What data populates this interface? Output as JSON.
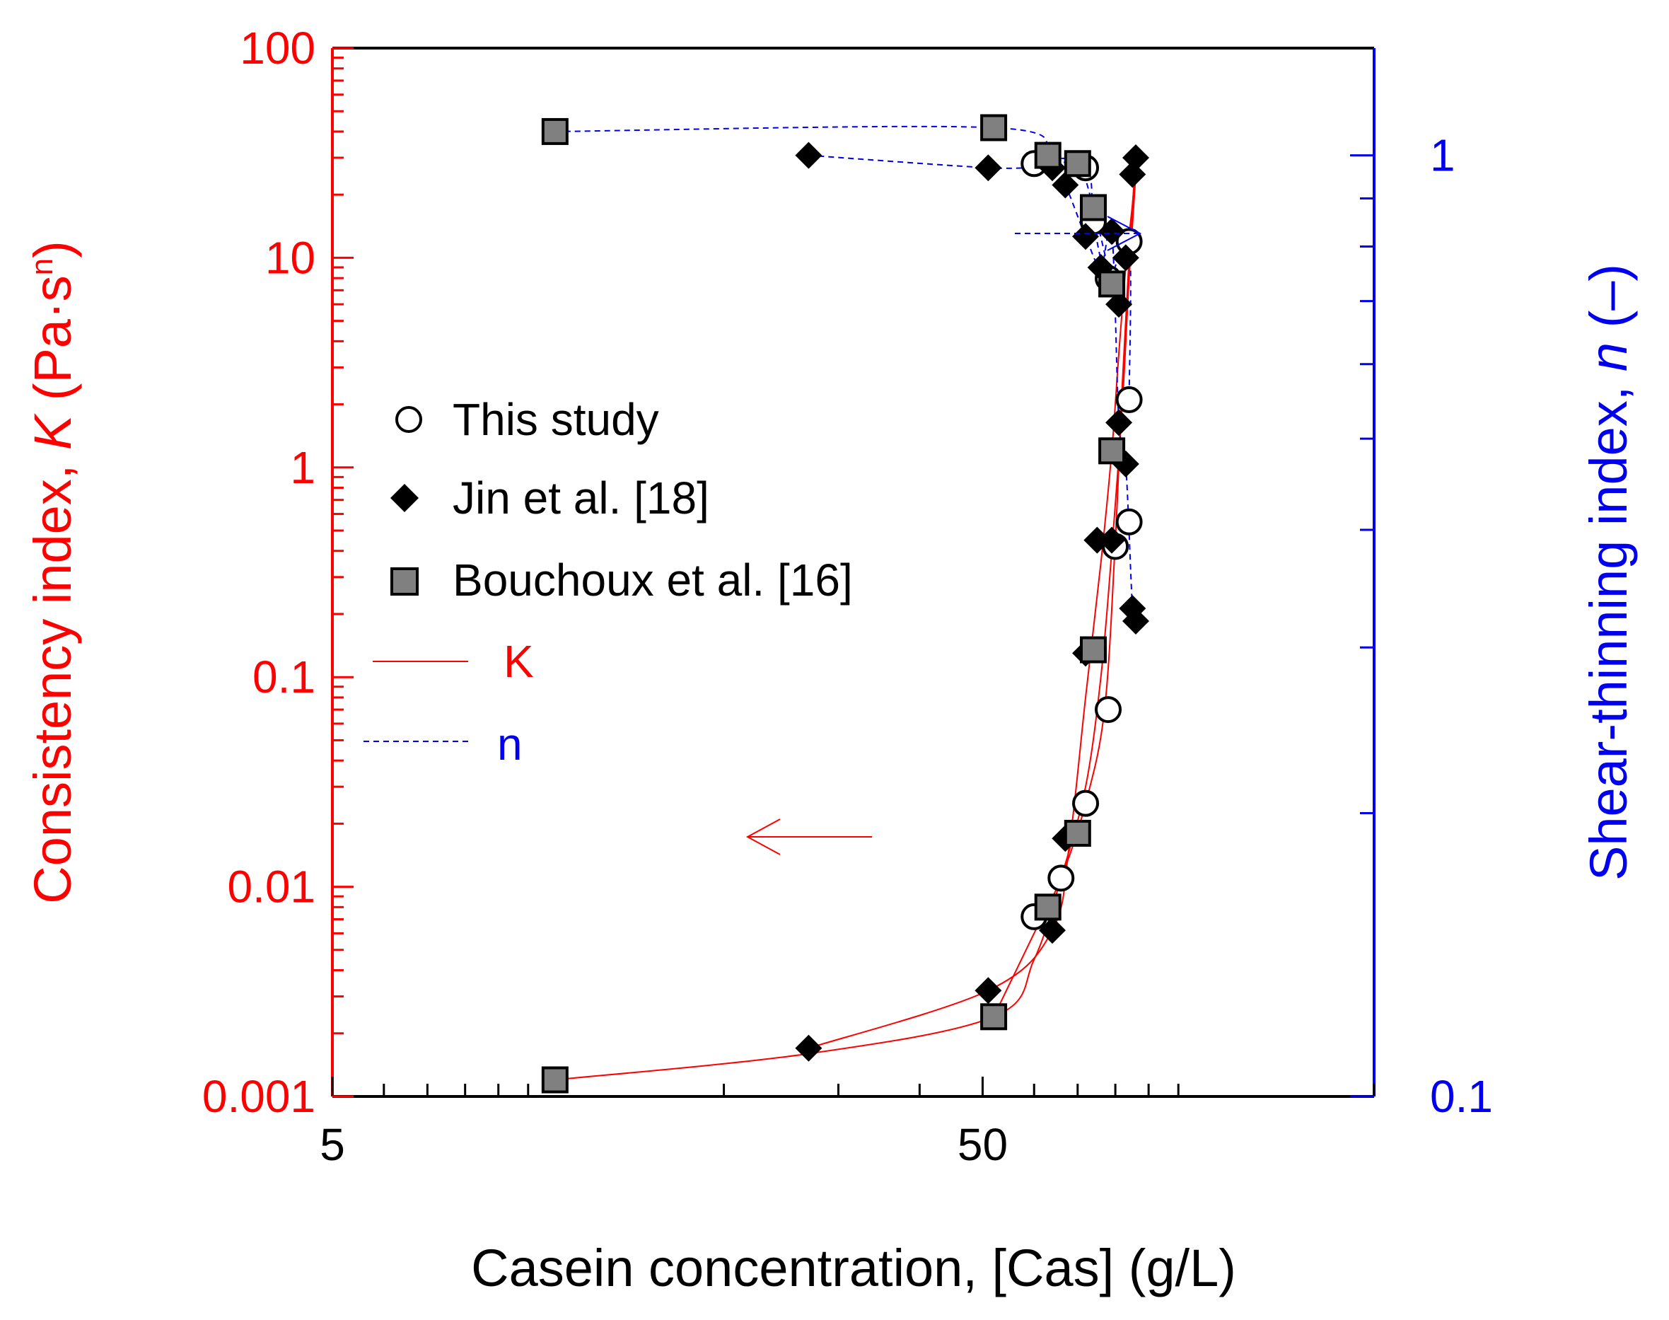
{
  "chart_data": {
    "type": "scatter",
    "xscale": "log",
    "xlim": [
      5,
      200
    ],
    "xticks": [
      {
        "v": 5,
        "label": "5"
      },
      {
        "v": 50,
        "label": "50"
      }
    ],
    "xlabel": "Casein concentration, [Cas] (g/L)",
    "left_axis": {
      "label_parts": [
        {
          "text": "Consistency index, ",
          "style": "normal"
        },
        {
          "text": "K",
          "style": "italic"
        },
        {
          "text": " (Pa·s",
          "style": "normal"
        },
        {
          "text": "n",
          "style": "super"
        },
        {
          "text": ")",
          "style": "normal"
        }
      ],
      "scale": "log",
      "lim": [
        0.001,
        100
      ],
      "ticks": [
        {
          "v": 0.001,
          "label": "0.001"
        },
        {
          "v": 0.01,
          "label": "0.01"
        },
        {
          "v": 0.1,
          "label": "0.1"
        },
        {
          "v": 1,
          "label": "1"
        },
        {
          "v": 10,
          "label": "10"
        },
        {
          "v": 100,
          "label": "100"
        }
      ],
      "color": "#ff0000"
    },
    "right_axis": {
      "label_parts": [
        {
          "text": "Shear-thinning index, ",
          "style": "normal"
        },
        {
          "text": "n",
          "style": "italic"
        },
        {
          "text": " (–)",
          "style": "normal"
        }
      ],
      "scale": "log",
      "lim": [
        0.1,
        1.3
      ],
      "ticks": [
        {
          "v": 0.1,
          "label": "0.1"
        },
        {
          "v": 1,
          "label": "1"
        }
      ],
      "color": "#0000ee"
    },
    "series": [
      {
        "name": "This study",
        "marker": "circle",
        "K": [
          [
            60,
            0.0072
          ],
          [
            66,
            0.011
          ],
          [
            72,
            0.025
          ],
          [
            78,
            0.07
          ],
          [
            80,
            0.42
          ],
          [
            84,
            0.55
          ]
        ],
        "n": [
          [
            60,
            0.98
          ],
          [
            72,
            0.97
          ],
          [
            74,
            0.85
          ],
          [
            78,
            0.74
          ],
          [
            84,
            0.81
          ],
          [
            84,
            0.55
          ]
        ]
      },
      {
        "name": "Jin et al. [18]",
        "marker": "diamond",
        "K": [
          [
            27,
            0.0017
          ],
          [
            51,
            0.0032
          ],
          [
            64,
            0.0062
          ],
          [
            67,
            0.017
          ],
          [
            72,
            0.13
          ],
          [
            75,
            0.45
          ],
          [
            79,
            0.45
          ],
          [
            81,
            6.0
          ],
          [
            83,
            10
          ],
          [
            85,
            25
          ],
          [
            86,
            30
          ]
        ],
        "n": [
          [
            27,
            1.0
          ],
          [
            51,
            0.97
          ],
          [
            64,
            0.97
          ],
          [
            67,
            0.93
          ],
          [
            72,
            0.82
          ],
          [
            76,
            0.76
          ],
          [
            79,
            0.83
          ],
          [
            81,
            0.52
          ],
          [
            83,
            0.47
          ],
          [
            85,
            0.33
          ],
          [
            86,
            0.32
          ]
        ]
      },
      {
        "name": "Bouchoux et al. [16]",
        "marker": "square",
        "K": [
          [
            11,
            0.0012
          ],
          [
            52,
            0.0024
          ],
          [
            63,
            0.008
          ],
          [
            70,
            0.018
          ],
          [
            74,
            0.135
          ],
          [
            79,
            1.2
          ]
        ],
        "n": [
          [
            11,
            1.06
          ],
          [
            52,
            1.07
          ],
          [
            63,
            1.0
          ],
          [
            70,
            0.98
          ],
          [
            74,
            0.88
          ],
          [
            79,
            0.73
          ]
        ]
      }
    ],
    "fits": [
      {
        "name": "K",
        "style": "solid",
        "color": "#ff0000",
        "axis": "left",
        "points": [
          [
            11,
            0.0012
          ],
          [
            27,
            0.0016
          ],
          [
            52,
            0.0024
          ],
          [
            60,
            0.0045
          ],
          [
            66,
            0.011
          ],
          [
            72,
            0.03
          ],
          [
            76,
            0.1
          ],
          [
            79,
            0.4
          ],
          [
            82,
            2
          ],
          [
            84,
            8
          ],
          [
            86,
            25
          ]
        ]
      },
      {
        "name": "K",
        "style": "solid",
        "color": "#ff0000",
        "axis": "left",
        "points": [
          [
            27,
            0.0017
          ],
          [
            51,
            0.0032
          ],
          [
            64,
            0.0062
          ],
          [
            68,
            0.016
          ],
          [
            72,
            0.08
          ],
          [
            76,
            0.35
          ],
          [
            79,
            1.2
          ],
          [
            81,
            3.5
          ],
          [
            83,
            9
          ],
          [
            85,
            18
          ],
          [
            86,
            28
          ]
        ]
      },
      {
        "name": "K",
        "style": "solid",
        "color": "#ff0000",
        "axis": "left",
        "points": [
          [
            52,
            0.0024
          ],
          [
            60,
            0.006
          ],
          [
            66,
            0.011
          ],
          [
            72,
            0.025
          ],
          [
            77,
            0.07
          ],
          [
            80,
            0.45
          ],
          [
            82,
            2.5
          ],
          [
            84,
            10
          ],
          [
            86,
            30
          ]
        ]
      },
      {
        "name": "n",
        "style": "dashed",
        "color": "#0000ee",
        "axis": "right",
        "points": [
          [
            11,
            1.06
          ],
          [
            52,
            1.07
          ],
          [
            63,
            1.0
          ],
          [
            70,
            0.98
          ],
          [
            74,
            0.88
          ],
          [
            79,
            0.73
          ]
        ]
      },
      {
        "name": "n",
        "style": "dashed",
        "color": "#0000ee",
        "axis": "right",
        "points": [
          [
            27,
            1.0
          ],
          [
            51,
            0.97
          ],
          [
            64,
            0.97
          ],
          [
            67,
            0.93
          ],
          [
            72,
            0.82
          ],
          [
            76,
            0.76
          ],
          [
            79,
            0.83
          ],
          [
            81,
            0.52
          ],
          [
            83,
            0.47
          ],
          [
            85,
            0.33
          ],
          [
            86,
            0.32
          ]
        ]
      },
      {
        "name": "n",
        "style": "dashed",
        "color": "#0000ee",
        "axis": "right",
        "points": [
          [
            60,
            0.98
          ],
          [
            72,
            0.97
          ],
          [
            74,
            0.85
          ],
          [
            78,
            0.74
          ],
          [
            84,
            0.81
          ],
          [
            84,
            0.55
          ]
        ]
      }
    ],
    "legend": {
      "placement": "center-left",
      "entries": [
        {
          "label": "This study",
          "kind": "circle"
        },
        {
          "label": "Jin et al. [18]",
          "kind": "diamond"
        },
        {
          "label": "Bouchoux et al. [16]",
          "kind": "square"
        },
        {
          "label": "K",
          "kind": "line-solid",
          "color": "#ff0000"
        },
        {
          "label": "n",
          "kind": "line-dashed",
          "color": "#0000ee"
        }
      ]
    },
    "annotations": [
      {
        "type": "arrow",
        "direction": "right",
        "axis_hint": "right-axis",
        "color": "#0000ee",
        "style": "dashed"
      },
      {
        "type": "arrow",
        "direction": "left",
        "axis_hint": "left-axis",
        "color": "#ff0000",
        "style": "solid"
      }
    ],
    "colors": {
      "left": "#ff0000",
      "right": "#0000ee",
      "marker_fill_square": "#808080",
      "marker_fill_diamond": "#000000",
      "marker_fill_circle": "#ffffff"
    }
  }
}
